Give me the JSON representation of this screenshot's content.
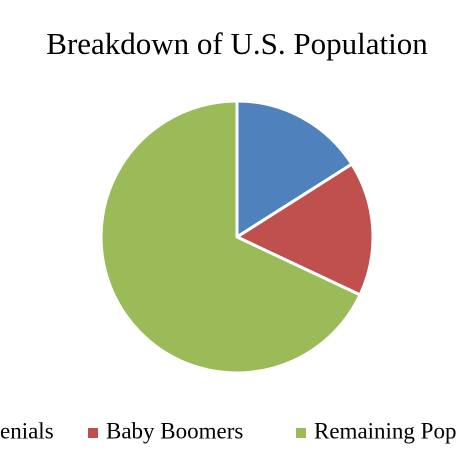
{
  "chart_data": {
    "type": "pie",
    "title": "Breakdown of U.S. Population",
    "categories": [
      "enials",
      "Baby Boomers",
      "Remaining Pop"
    ],
    "values": [
      16,
      16,
      68
    ],
    "colors": [
      "#4f81bd",
      "#c0504d",
      "#9bbb59"
    ]
  }
}
